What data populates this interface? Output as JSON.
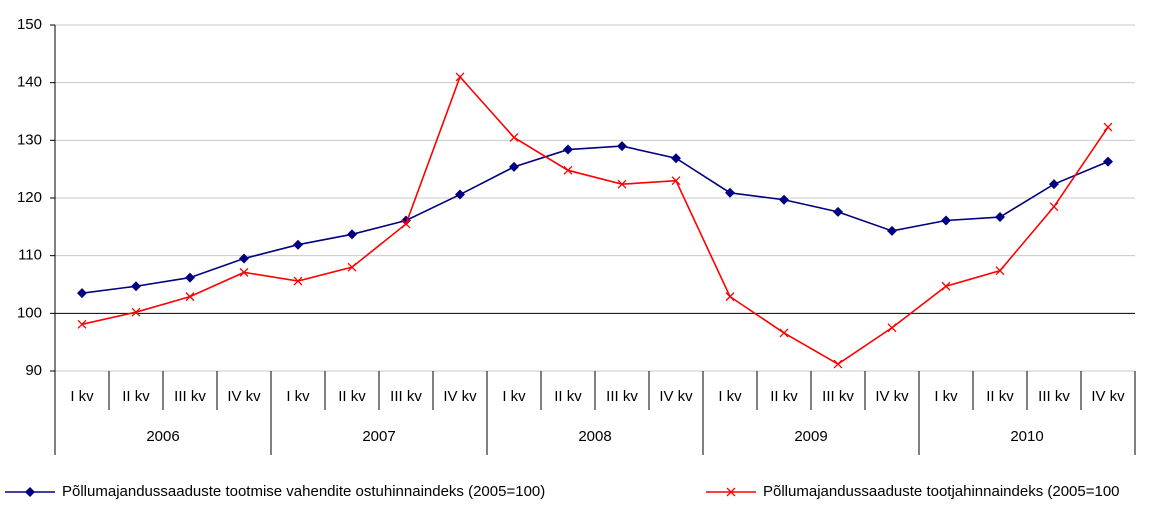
{
  "chart_data": {
    "type": "line",
    "categories": [
      "I kv",
      "II kv",
      "III kv",
      "IV kv",
      "I kv",
      "II kv",
      "III kv",
      "IV kv",
      "I kv",
      "II kv",
      "III kv",
      "IV kv",
      "I kv",
      "II kv",
      "III kv",
      "IV kv",
      "I kv",
      "II kv",
      "III kv",
      "IV kv"
    ],
    "groups": [
      "2006",
      "2007",
      "2008",
      "2009",
      "2010"
    ],
    "series": [
      {
        "name": "Põllumajandussaaduste tootmise vahendite ostuhinnaindeks (2005=100)",
        "color": "#000080",
        "marker": "diamond",
        "values": [
          103.5,
          104.7,
          106.2,
          109.5,
          111.9,
          113.7,
          116.1,
          120.6,
          125.4,
          128.4,
          129.0,
          126.9,
          120.9,
          119.7,
          117.6,
          114.3,
          116.1,
          116.7,
          122.4,
          126.3
        ]
      },
      {
        "name": "Põllumajandussaaduste tootjahinnaindeks (2005=100",
        "color": "#ff0000",
        "marker": "x",
        "values": [
          98.1,
          100.2,
          102.9,
          107.1,
          105.6,
          108.0,
          115.5,
          141.0,
          130.5,
          124.8,
          122.4,
          123.0,
          102.9,
          96.6,
          91.2,
          97.5,
          104.7,
          107.4,
          118.5,
          132.3
        ]
      }
    ],
    "ylim": [
      90,
      150
    ],
    "yticks": [
      90,
      100,
      110,
      120,
      130,
      140,
      150
    ],
    "grid": true,
    "x_axis_crosses": 100,
    "legend": "bottom"
  }
}
